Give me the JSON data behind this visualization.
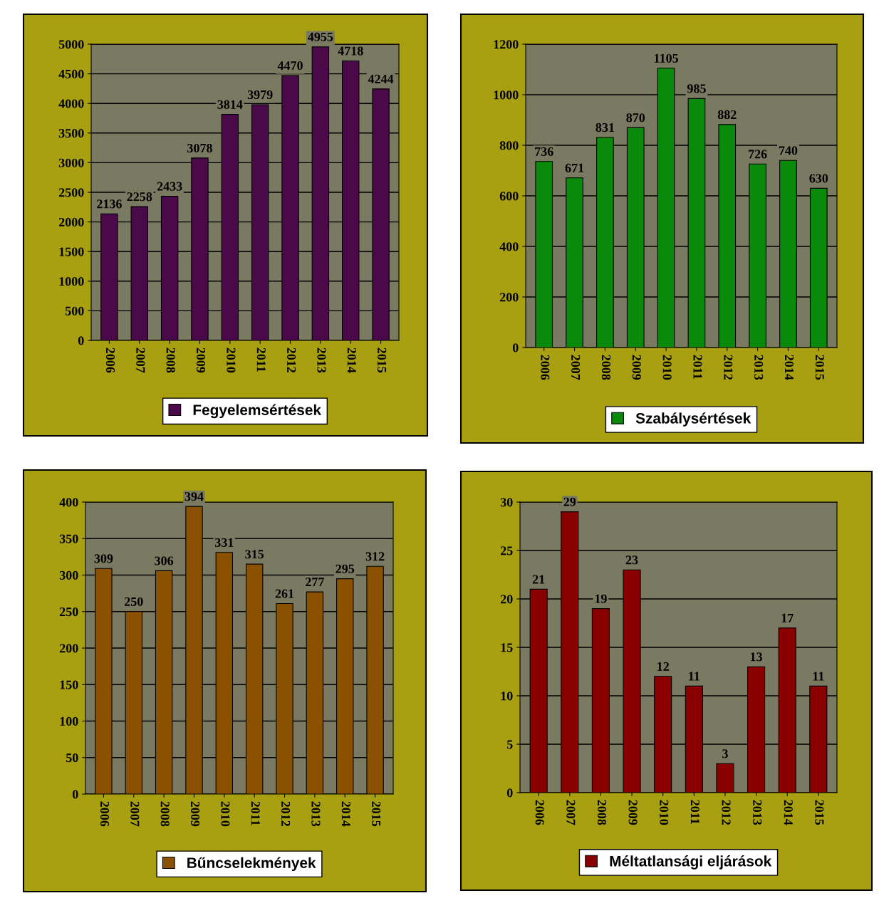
{
  "chart_data": [
    {
      "type": "bar",
      "categories": [
        "2006",
        "2007",
        "2008",
        "2009",
        "2010",
        "2011",
        "2012",
        "2013",
        "2014",
        "2015"
      ],
      "series": [
        {
          "name": "Fegyelemsértések",
          "color": "#4a0a4a",
          "values": [
            2136,
            2258,
            2433,
            3078,
            3814,
            3979,
            4470,
            4955,
            4718,
            4244
          ]
        }
      ],
      "ylim": [
        0,
        5000
      ],
      "yticks": [
        0,
        500,
        1000,
        1500,
        2000,
        2500,
        3000,
        3500,
        4000,
        4500,
        5000
      ],
      "grid": "y",
      "legend": "bottom",
      "data_labels": true
    },
    {
      "type": "bar",
      "categories": [
        "2006",
        "2007",
        "2008",
        "2009",
        "2010",
        "2011",
        "2012",
        "2013",
        "2014",
        "2015"
      ],
      "series": [
        {
          "name": "Szabálysértések",
          "color": "#0a8a0a",
          "values": [
            736,
            671,
            831,
            870,
            1105,
            985,
            882,
            726,
            740,
            630
          ]
        }
      ],
      "ylim": [
        0,
        1200
      ],
      "yticks": [
        0,
        200,
        400,
        600,
        800,
        1000,
        1200
      ],
      "grid": "y",
      "legend": "bottom",
      "data_labels": true
    },
    {
      "type": "bar",
      "categories": [
        "2006",
        "2007",
        "2008",
        "2009",
        "2010",
        "2011",
        "2012",
        "2013",
        "2014",
        "2015"
      ],
      "series": [
        {
          "name": "Bűncselekmények",
          "color": "#8a5200",
          "values": [
            309,
            250,
            306,
            394,
            331,
            315,
            261,
            277,
            295,
            312
          ]
        }
      ],
      "ylim": [
        0,
        400
      ],
      "yticks": [
        0,
        50,
        100,
        150,
        200,
        250,
        300,
        350,
        400
      ],
      "grid": "y",
      "legend": "bottom",
      "data_labels": true
    },
    {
      "type": "bar",
      "categories": [
        "2006",
        "2007",
        "2008",
        "2009",
        "2010",
        "2011",
        "2012",
        "2013",
        "2014",
        "2015"
      ],
      "series": [
        {
          "name": "Méltatlansági eljárások",
          "color": "#8a0000",
          "values": [
            21,
            29,
            19,
            23,
            12,
            11,
            3,
            13,
            17,
            11
          ]
        }
      ],
      "ylim": [
        0,
        30
      ],
      "yticks": [
        0,
        5,
        10,
        15,
        20,
        25,
        30
      ],
      "grid": "y",
      "legend": "bottom",
      "data_labels": true
    }
  ]
}
